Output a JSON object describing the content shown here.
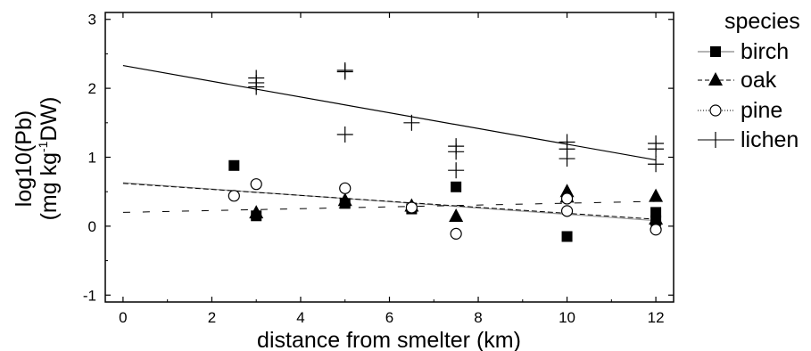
{
  "chart_data": {
    "type": "scatter",
    "xlabel": "distance from smelter (km)",
    "ylabel_line1": "log10(Pb)",
    "ylabel_line2_prefix": "(mg kg",
    "ylabel_line2_sup": "-1",
    "ylabel_line2_suffix": "DW)",
    "xlim": [
      -0.4,
      12.4
    ],
    "ylim": [
      -1.1,
      3.1
    ],
    "x_ticks": [
      0,
      2,
      4,
      6,
      8,
      10,
      12
    ],
    "y_ticks": [
      -1,
      0,
      1,
      2,
      3
    ],
    "x_tick_labels": [
      "0",
      "2",
      "4",
      "6",
      "8",
      "10",
      "12"
    ],
    "y_tick_labels": [
      "-1",
      "0",
      "1",
      "2",
      "3"
    ],
    "grid": false,
    "legend": {
      "title": "species",
      "placement": "right",
      "entries": [
        "birch",
        "oak",
        "pine",
        "lichen"
      ]
    },
    "series": [
      {
        "name": "birch",
        "marker": "filled-square",
        "line_style": "solid-gray",
        "x": [
          2.5,
          3,
          5,
          6.5,
          7.5,
          10,
          12,
          12
        ],
        "y": [
          0.88,
          0.15,
          0.33,
          0.25,
          0.57,
          -0.15,
          0.2,
          0.08
        ],
        "fit": {
          "x": [
            0,
            12
          ],
          "y": [
            0.63,
            0.08
          ]
        }
      },
      {
        "name": "oak",
        "marker": "filled-triangle",
        "line_style": "dashed",
        "x": [
          3,
          5,
          6.5,
          7.5,
          10,
          10,
          12,
          12
        ],
        "y": [
          0.19,
          0.37,
          0.29,
          0.14,
          0.5,
          0.42,
          0.43,
          0.1
        ],
        "fit": {
          "x": [
            0,
            12
          ],
          "y": [
            0.62,
            0.1
          ]
        }
      },
      {
        "name": "pine",
        "marker": "open-circle",
        "line_style": "dotted",
        "x": [
          2.5,
          3,
          5,
          6.5,
          7.5,
          10,
          10,
          12
        ],
        "y": [
          0.44,
          0.61,
          0.55,
          0.27,
          -0.11,
          0.4,
          0.22,
          -0.05
        ],
        "fit": {
          "x": [
            0,
            12
          ],
          "y": [
            0.2,
            0.36
          ]
        }
      },
      {
        "name": "lichen",
        "marker": "plus",
        "line_style": "solid",
        "x": [
          3,
          3,
          3,
          5,
          5,
          5,
          6.5,
          7.5,
          7.5,
          7.5,
          10,
          10,
          10,
          12,
          12,
          12
        ],
        "y": [
          2.15,
          2.08,
          2.02,
          2.26,
          2.24,
          1.33,
          1.5,
          1.16,
          1.08,
          0.81,
          1.22,
          1.12,
          0.98,
          1.2,
          1.12,
          0.9
        ],
        "fit": {
          "x": [
            0,
            12
          ],
          "y": [
            2.33,
            0.96
          ]
        }
      }
    ]
  }
}
